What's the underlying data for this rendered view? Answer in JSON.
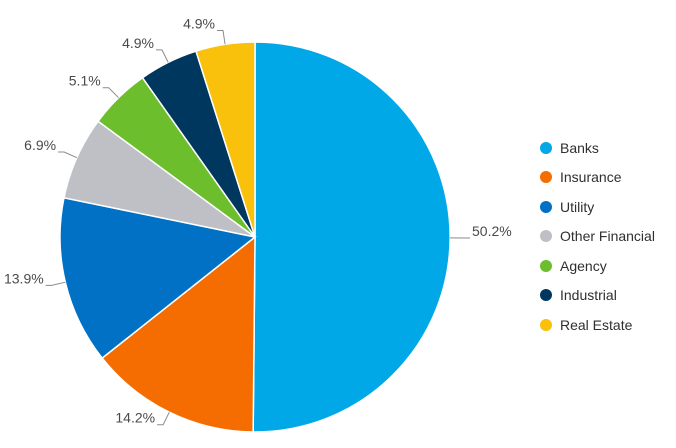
{
  "chart_data": {
    "type": "pie",
    "title": "",
    "legend_position": "right",
    "start": "12 o'clock, clockwise",
    "slices": [
      {
        "name": "Banks",
        "value": 50.2,
        "label": "50.2%",
        "color": "#00A8E8"
      },
      {
        "name": "Insurance",
        "value": 14.2,
        "label": "14.2%",
        "color": "#F56D00"
      },
      {
        "name": "Utility",
        "value": 13.9,
        "label": "13.9%",
        "color": "#0071C5"
      },
      {
        "name": "Other Financial",
        "value": 6.9,
        "label": "6.9%",
        "color": "#BEC0C6"
      },
      {
        "name": "Agency",
        "value": 5.1,
        "label": "5.1%",
        "color": "#6CBE2D"
      },
      {
        "name": "Industrial",
        "value": 4.9,
        "label": "4.9%",
        "color": "#00375F"
      },
      {
        "name": "Real Estate",
        "value": 4.9,
        "label": "4.9%",
        "color": "#F9C00C"
      }
    ]
  }
}
